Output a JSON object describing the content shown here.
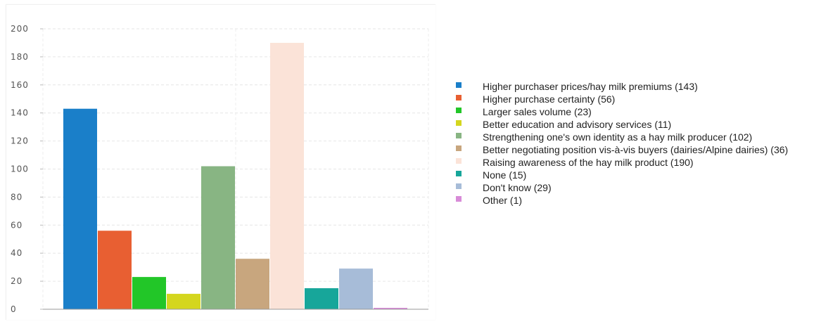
{
  "chart_data": {
    "type": "bar",
    "title": "",
    "xlabel": "",
    "ylabel": "",
    "ylim": [
      0,
      200
    ],
    "yticks": [
      0,
      20,
      40,
      60,
      80,
      100,
      120,
      140,
      160,
      180,
      200
    ],
    "grid": true,
    "legend_position": "right",
    "categories": [
      "Higher purchaser prices/hay milk premiums (143)",
      "Higher purchase certainty (56)",
      "Larger sales volume (23)",
      "Better education and advisory services (11)",
      "Strengthening one's own identity as a hay milk producer (102)",
      "Better negotiating position vis-à-vis buyers (dairies/Alpine dairies) (36)",
      "Raising awareness of the hay milk product (190)",
      "None (15)",
      "Don't know (29)",
      "Other (1)"
    ],
    "values": [
      143,
      56,
      23,
      11,
      102,
      36,
      190,
      15,
      29,
      1
    ],
    "colors": [
      "#1a7fc9",
      "#e85f32",
      "#22c628",
      "#d4d61e",
      "#88b583",
      "#c8a67e",
      "#fbe3d8",
      "#17a69a",
      "#a7bcd8",
      "#d88bd8"
    ]
  }
}
